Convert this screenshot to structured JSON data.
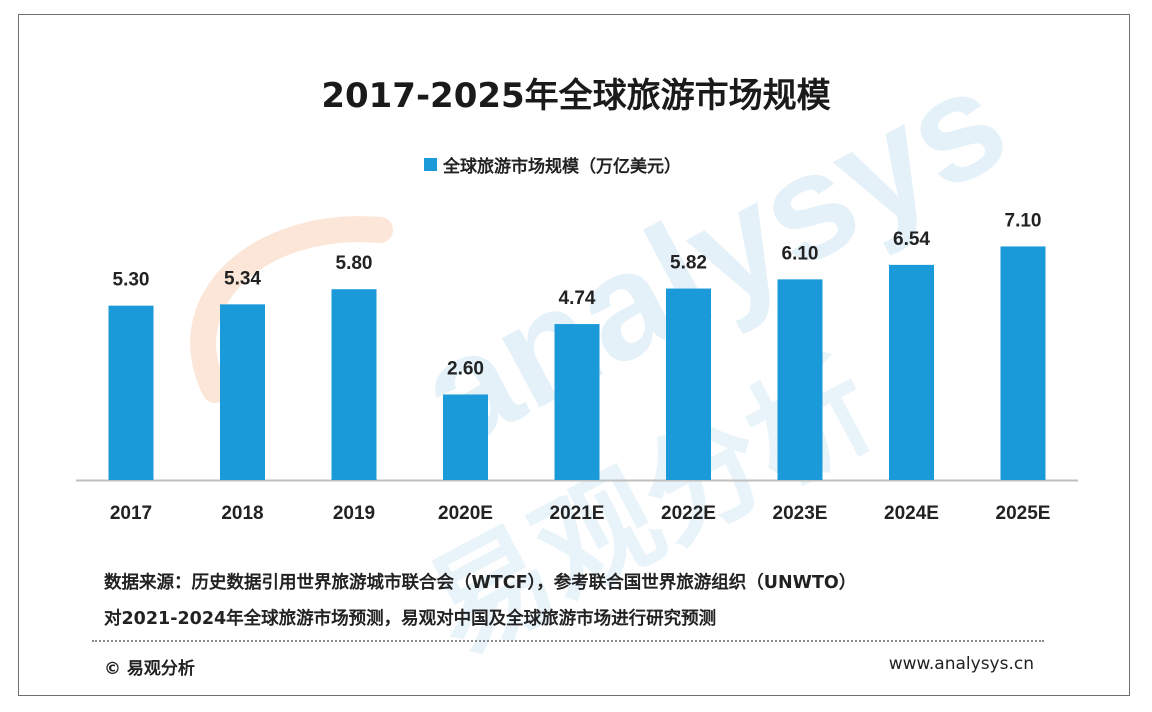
{
  "title": "2017-2025年全球旅游市场规模",
  "legend_label": "全球旅游市场规模（万亿美元）",
  "source_line1": "数据来源：历史数据引用世界旅游城市联合会（WTCF），参考联合国世界旅游组织（UNWTO）",
  "source_line2": "对2021-2024年全球旅游市场预测，易观对中国及全球旅游市场进行研究预测",
  "footer_brand": "© 易观分析",
  "footer_url": "www.analysys.cn",
  "watermark_text": "analysys",
  "watermark_cn": "易观分析",
  "colors": {
    "bar": "#1b9ad9",
    "watermark": "#dcedf8",
    "axis": "#bfbfbf"
  },
  "chart_data": {
    "type": "bar",
    "title": "2017-2025年全球旅游市场规模",
    "categories": [
      "2017",
      "2018",
      "2019",
      "2020E",
      "2021E",
      "2022E",
      "2023E",
      "2024E",
      "2025E"
    ],
    "series": [
      {
        "name": "全球旅游市场规模（万亿美元）",
        "values": [
          5.3,
          5.34,
          5.8,
          2.6,
          4.74,
          5.82,
          6.1,
          6.54,
          7.1
        ]
      }
    ],
    "value_labels": [
      "5.30",
      "5.34",
      "5.80",
      "2.60",
      "4.74",
      "5.82",
      "6.10",
      "6.54",
      "7.10"
    ],
    "ylim": [
      0,
      7.6
    ],
    "grid": false,
    "legend": "top-center"
  }
}
